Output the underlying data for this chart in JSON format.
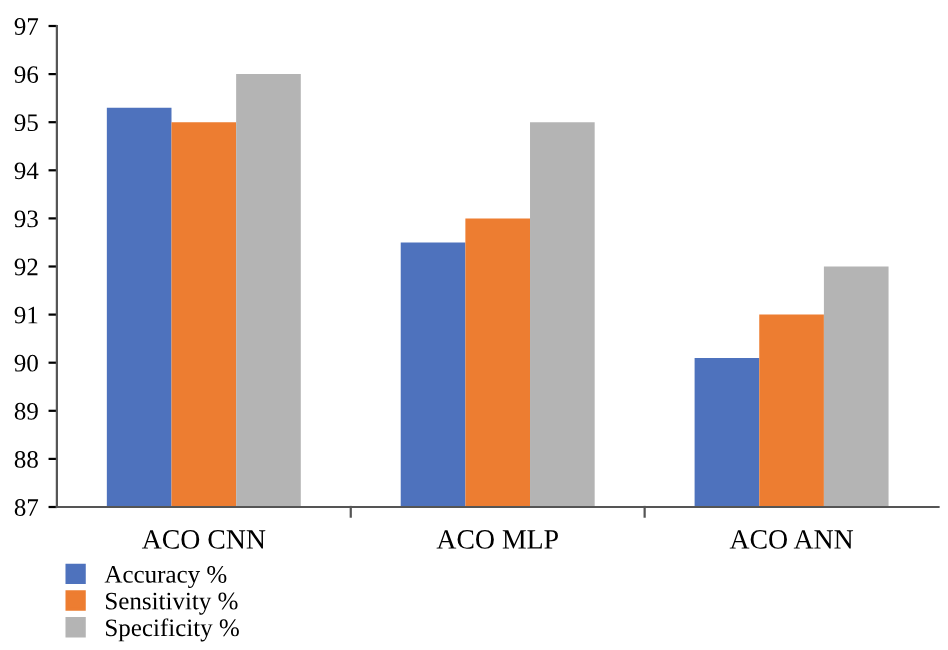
{
  "chart_data": {
    "type": "bar",
    "categories": [
      "ACO CNN",
      "ACO MLP",
      "ACO ANN"
    ],
    "series": [
      {
        "name": "Accuracy %",
        "color": "#4e72bd",
        "values": [
          95.3,
          92.5,
          90.1
        ]
      },
      {
        "name": "Sensitivity %",
        "color": "#ed7d31",
        "values": [
          95,
          93,
          91
        ]
      },
      {
        "name": "Specificity %",
        "color": "#b4b4b4",
        "values": [
          96,
          95,
          92
        ]
      }
    ],
    "ylim": [
      87,
      97
    ],
    "yticks": [
      87,
      88,
      89,
      90,
      91,
      92,
      93,
      94,
      95,
      96,
      97
    ],
    "grid": false,
    "legend": "bottom left"
  }
}
